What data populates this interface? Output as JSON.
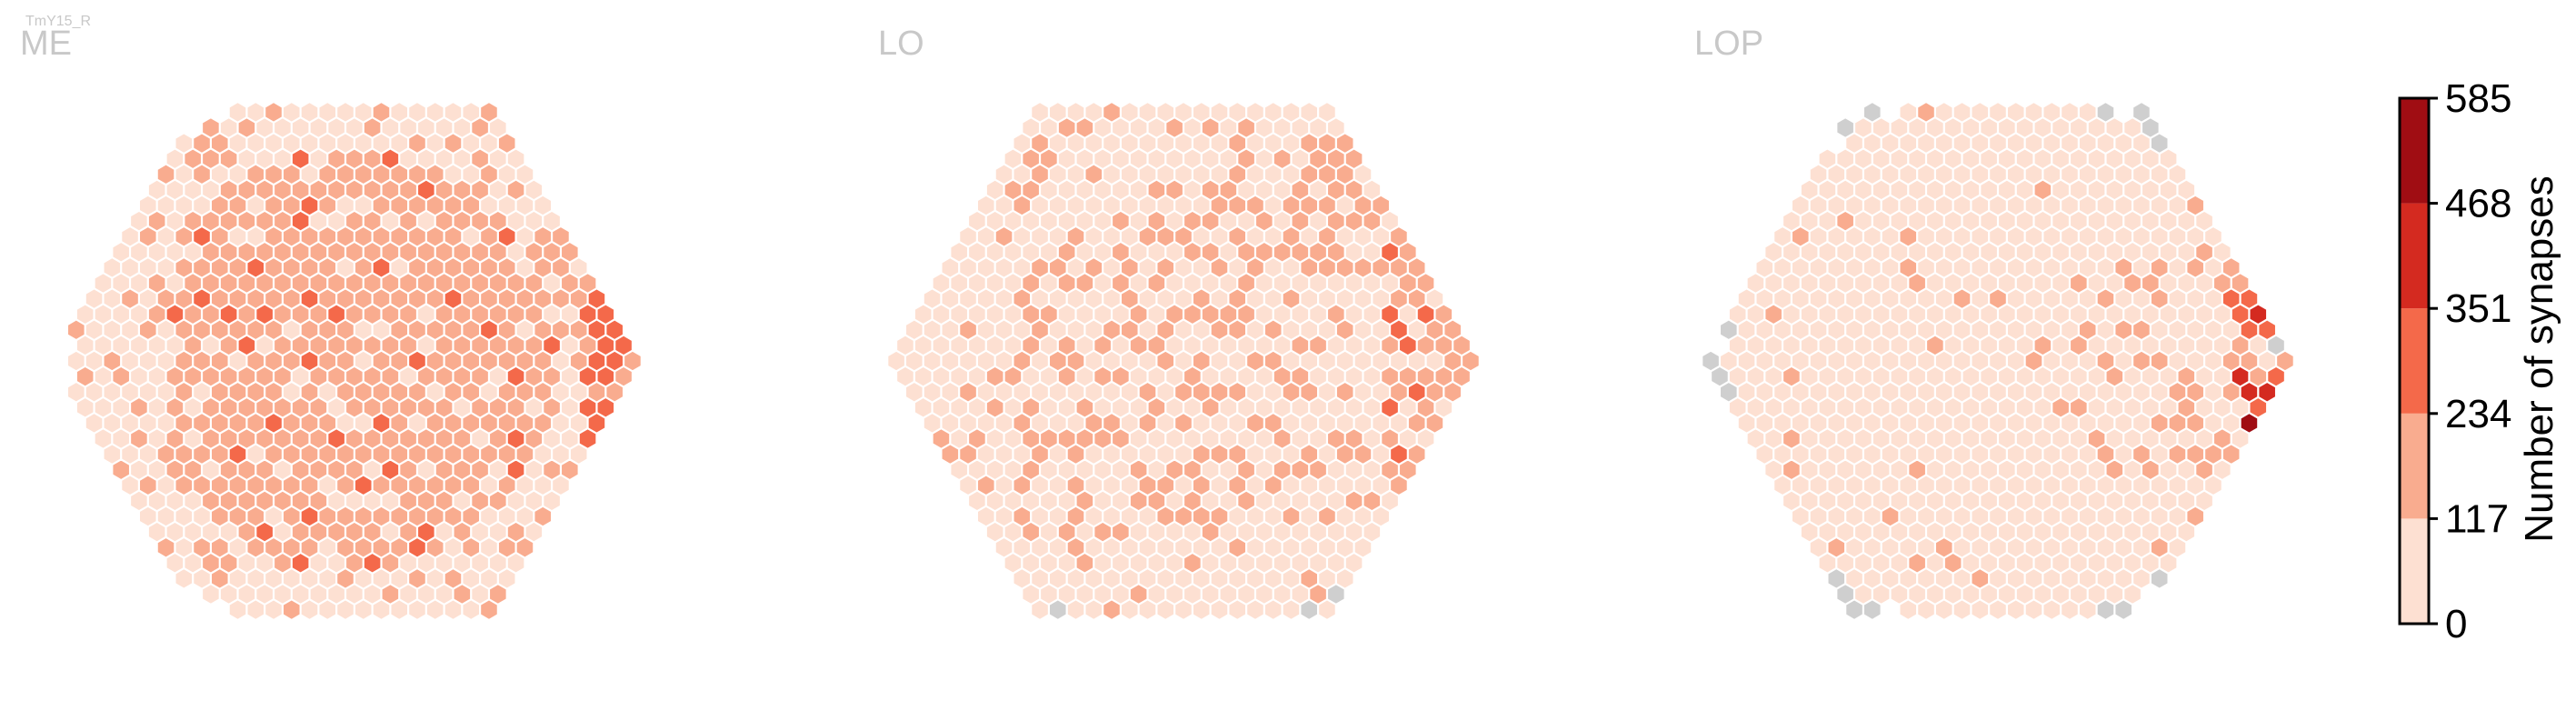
{
  "figure_label": "TmY15_R",
  "chart_data": [
    {
      "type": "heatmap",
      "subtype": "hexagonal",
      "title": "ME",
      "grid_radius": 16,
      "hex_layout": "pointy-top",
      "values_pattern": "mostly light (0-117) at the periphery, medium (117-234) through the center, a right-edge band of 234-351",
      "hotspot": "right-center"
    },
    {
      "type": "heatmap",
      "subtype": "hexagonal",
      "title": "LO",
      "grid_radius": 16,
      "hex_layout": "pointy-top",
      "values_pattern": "mostly light (0-117), scattered medium (117-234) cells, a few 234-351 cells at the right edge",
      "hotspot": "right-center",
      "grey_edge_cells": "sparse, along bottom and upper-left edge"
    },
    {
      "type": "heatmap",
      "subtype": "hexagonal",
      "title": "LOP",
      "grid_radius": 16,
      "hex_layout": "pointy-top",
      "values_pattern": "mostly light (0-117), a few medium cells, isolated 351-585 cells at the right edge",
      "hotspot": "right-edge",
      "grey_edge_cells": "many, forming a ring around the left, top and bottom edges"
    }
  ],
  "colorbar": {
    "label": "Number of synapses",
    "ticks": [
      "0",
      "117",
      "234",
      "351",
      "468",
      "585"
    ],
    "bins": [
      {
        "range": [
          0,
          117
        ],
        "color": "#fde0d2"
      },
      {
        "range": [
          117,
          234
        ],
        "color": "#f9ac8f"
      },
      {
        "range": [
          234,
          351
        ],
        "color": "#f4694a"
      },
      {
        "range": [
          351,
          468
        ],
        "color": "#d42a20"
      },
      {
        "range": [
          468,
          585
        ],
        "color": "#a00d13"
      }
    ]
  },
  "colors": {
    "no_data_cell": "#cfcfcf",
    "empty_cell": "#ffffff",
    "cell_edge": "#ffffff",
    "title_text": "#c8c8c8",
    "figure_label_text": "#c8c8c8",
    "colorbar_text": "#000000"
  }
}
